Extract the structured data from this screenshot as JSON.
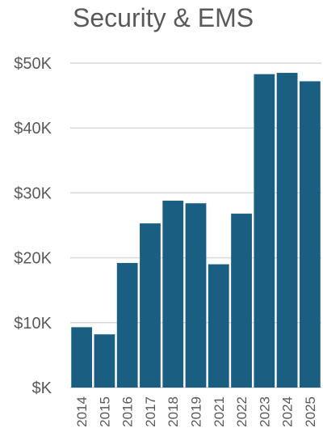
{
  "chart_data": {
    "type": "bar",
    "title": "Security & EMS",
    "xlabel": "",
    "ylabel": "",
    "categories": [
      "2014",
      "2015",
      "2016",
      "2017",
      "2018",
      "2019",
      "2021",
      "2022",
      "2023",
      "2024",
      "2025"
    ],
    "values": [
      9300,
      8200,
      19200,
      25300,
      28800,
      28400,
      19000,
      26800,
      48300,
      48500,
      47200
    ],
    "ylim": [
      0,
      50000
    ],
    "yticks": [
      0,
      10000,
      20000,
      30000,
      40000,
      50000
    ],
    "ytick_labels": [
      "$K",
      "$10K",
      "$20K",
      "$30K",
      "$40K",
      "$50K"
    ],
    "grid": true,
    "legend": "none",
    "bar_color": "#1a5f82",
    "grid_color": "#d9d9d9",
    "tick_label_color": "#595959"
  }
}
